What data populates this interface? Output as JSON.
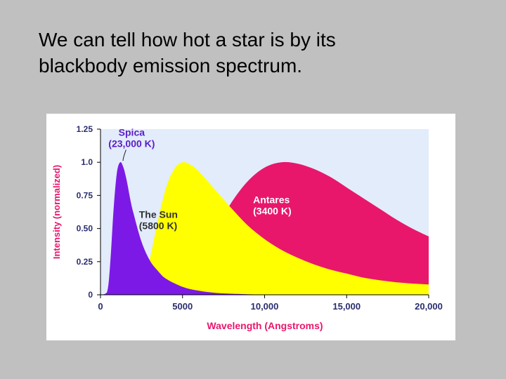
{
  "slide": {
    "title_line1": "We can tell how hot a star is by its",
    "title_line2": "blackbody emission spectrum."
  },
  "chart_data": {
    "type": "area",
    "title": "",
    "xlabel": "Wavelength (Angstroms)",
    "ylabel": "Intensity (normalized)",
    "xlim": [
      0,
      20000
    ],
    "ylim": [
      0,
      1.25
    ],
    "x_ticks": [
      "0",
      "5000",
      "10,000",
      "15,000",
      "20,000"
    ],
    "y_ticks": [
      "0",
      "0.25",
      "0.50",
      "0.75",
      "1.0",
      "1.25"
    ],
    "grid": false,
    "series": [
      {
        "name": "Antares",
        "label_lines": [
          "Antares",
          "(3400 K)"
        ],
        "temperature_K": 3400,
        "color": "#e8176c",
        "x": [
          0,
          4000,
          5000,
          6000,
          7000,
          8000,
          9000,
          10000,
          11000,
          12000,
          13000,
          14000,
          15000,
          16000,
          17000,
          18000,
          19000,
          20000
        ],
        "values": [
          0,
          0.003,
          0.05,
          0.22,
          0.48,
          0.7,
          0.86,
          0.96,
          1.0,
          0.99,
          0.95,
          0.89,
          0.81,
          0.73,
          0.65,
          0.57,
          0.5,
          0.44
        ]
      },
      {
        "name": "The Sun",
        "label_lines": [
          "The Sun",
          "(5800 K)"
        ],
        "temperature_K": 5800,
        "color": "#ffff00",
        "x": [
          0,
          2000,
          2500,
          3000,
          3500,
          4000,
          4500,
          5000,
          5500,
          6000,
          7000,
          8000,
          9000,
          10000,
          11000,
          12000,
          13000,
          14000,
          15000,
          16000,
          17000,
          18000,
          19000,
          20000
        ],
        "values": [
          0,
          0.004,
          0.07,
          0.27,
          0.56,
          0.81,
          0.95,
          1.0,
          0.98,
          0.93,
          0.79,
          0.65,
          0.52,
          0.42,
          0.34,
          0.28,
          0.23,
          0.19,
          0.16,
          0.13,
          0.11,
          0.095,
          0.085,
          0.078
        ]
      },
      {
        "name": "Spica",
        "label_lines": [
          "Spica",
          "(23,000 K)"
        ],
        "temperature_K": 23000,
        "color": "#7d19e6",
        "x": [
          0,
          400,
          600,
          800,
          1000,
          1200,
          1400,
          1600,
          1800,
          2000,
          2500,
          3000,
          3500,
          4000,
          5000,
          6000,
          7000,
          8000,
          10000
        ],
        "values": [
          0,
          0.02,
          0.25,
          0.65,
          0.92,
          1.0,
          0.96,
          0.86,
          0.73,
          0.62,
          0.4,
          0.26,
          0.18,
          0.12,
          0.06,
          0.03,
          0.015,
          0.008,
          0
        ]
      }
    ],
    "colors": {
      "plot_background": "#e2ecfb",
      "axis_text": "#2a2d6e",
      "xlabel_color": "#e8176c",
      "ylabel_color": "#e8176c"
    }
  }
}
